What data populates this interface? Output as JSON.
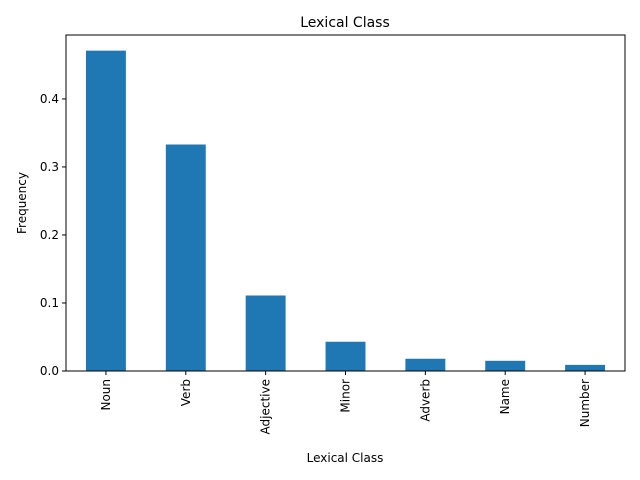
{
  "chart_data": {
    "type": "bar",
    "title": "Lexical Class",
    "xlabel": "Lexical Class",
    "ylabel": "Frequency",
    "categories": [
      "Noun",
      "Verb",
      "Adjective",
      "Minor",
      "Adverb",
      "Name",
      "Number"
    ],
    "values": [
      0.471,
      0.333,
      0.111,
      0.043,
      0.018,
      0.015,
      0.009
    ],
    "ylim": [
      0,
      0.494
    ],
    "yticks": [
      0.0,
      0.1,
      0.2,
      0.3,
      0.4
    ],
    "ytick_labels": [
      "0.0",
      "0.1",
      "0.2",
      "0.3",
      "0.4"
    ],
    "bar_color": "#1f77b4",
    "grid": false,
    "legend": "none"
  }
}
